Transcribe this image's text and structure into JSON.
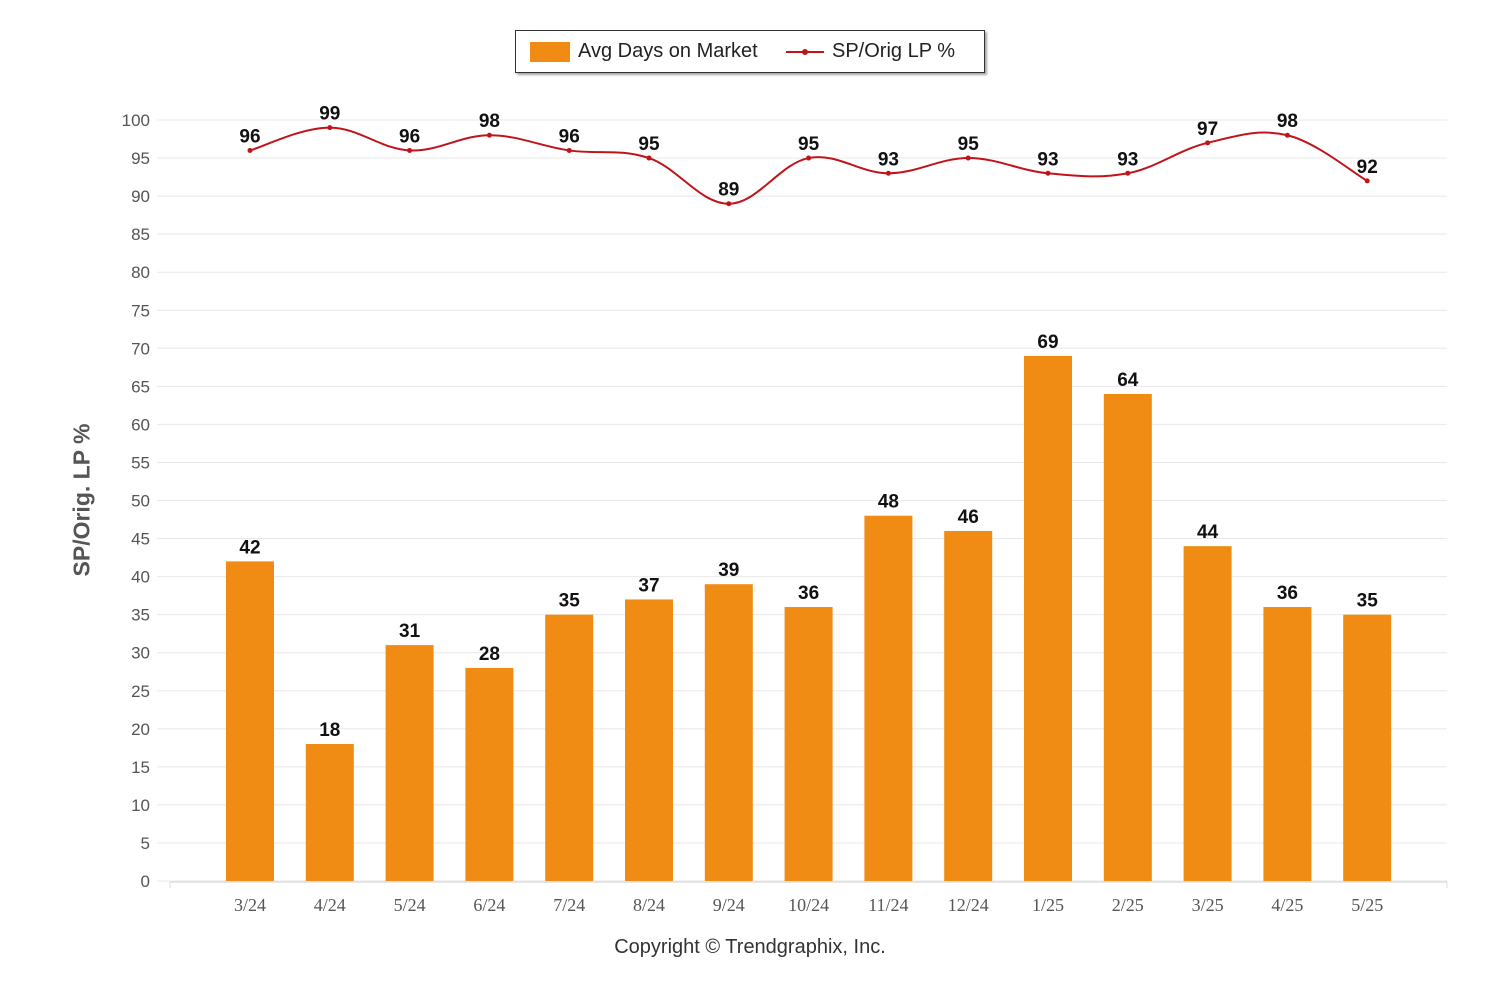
{
  "colors": {
    "bar": "#f08c14",
    "line": "#c0141a",
    "grid": "#e8e8e8",
    "axis_text": "#555555",
    "label_text": "#111111"
  },
  "legend": {
    "bars_label": "Avg Days on Market",
    "line_label": "SP/Orig LP %"
  },
  "copyright": "Copyright © Trendgraphix, Inc.",
  "chart_data": {
    "type": "bar",
    "title": "",
    "xlabel": "",
    "ylabel": "SP/Orig. LP %",
    "ylim": [
      0,
      100
    ],
    "yticks": [
      0,
      5,
      10,
      15,
      20,
      25,
      30,
      35,
      40,
      45,
      50,
      55,
      60,
      65,
      70,
      75,
      80,
      85,
      90,
      95,
      100
    ],
    "grid": true,
    "legend_position": "top-center",
    "categories": [
      "3/24",
      "4/24",
      "5/24",
      "6/24",
      "7/24",
      "8/24",
      "9/24",
      "10/24",
      "11/24",
      "12/24",
      "1/25",
      "2/25",
      "3/25",
      "4/25",
      "5/25"
    ],
    "series": [
      {
        "name": "Avg Days on Market",
        "type": "bar",
        "values": [
          42,
          18,
          31,
          28,
          35,
          37,
          39,
          36,
          48,
          46,
          69,
          64,
          44,
          36,
          35
        ]
      },
      {
        "name": "SP/Orig LP %",
        "type": "line",
        "values": [
          96,
          99,
          96,
          98,
          96,
          95,
          89,
          95,
          93,
          95,
          93,
          93,
          97,
          98,
          92
        ]
      }
    ]
  }
}
